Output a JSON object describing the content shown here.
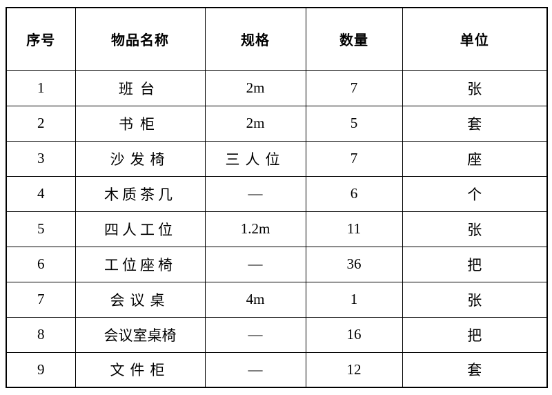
{
  "page": {
    "background_color": "#ffffff",
    "text_color": "#000000",
    "border_color": "#000000"
  },
  "table": {
    "columns": [
      {
        "key": "index",
        "label": "序号"
      },
      {
        "key": "name",
        "label": "物品名称"
      },
      {
        "key": "spec",
        "label": "规格"
      },
      {
        "key": "qty",
        "label": "数量"
      },
      {
        "key": "unit",
        "label": "单位"
      }
    ],
    "rows": [
      {
        "index": "1",
        "name": "班台",
        "spec": "2m",
        "qty": "7",
        "unit": "张"
      },
      {
        "index": "2",
        "name": "书柜",
        "spec": "2m",
        "qty": "5",
        "unit": "套"
      },
      {
        "index": "3",
        "name": "沙发椅",
        "spec": "三人位",
        "qty": "7",
        "unit": "座"
      },
      {
        "index": "4",
        "name": "木质茶几",
        "spec": "—",
        "qty": "6",
        "unit": "个"
      },
      {
        "index": "5",
        "name": "四人工位",
        "spec": "1.2m",
        "qty": "11",
        "unit": "张"
      },
      {
        "index": "6",
        "name": "工位座椅",
        "spec": "—",
        "qty": "36",
        "unit": "把"
      },
      {
        "index": "7",
        "name": "会议桌",
        "spec": "4m",
        "qty": "1",
        "unit": "张"
      },
      {
        "index": "8",
        "name": "会议室桌椅",
        "spec": "—",
        "qty": "16",
        "unit": "把"
      },
      {
        "index": "9",
        "name": "文件柜",
        "spec": "—",
        "qty": "12",
        "unit": "套"
      }
    ]
  }
}
